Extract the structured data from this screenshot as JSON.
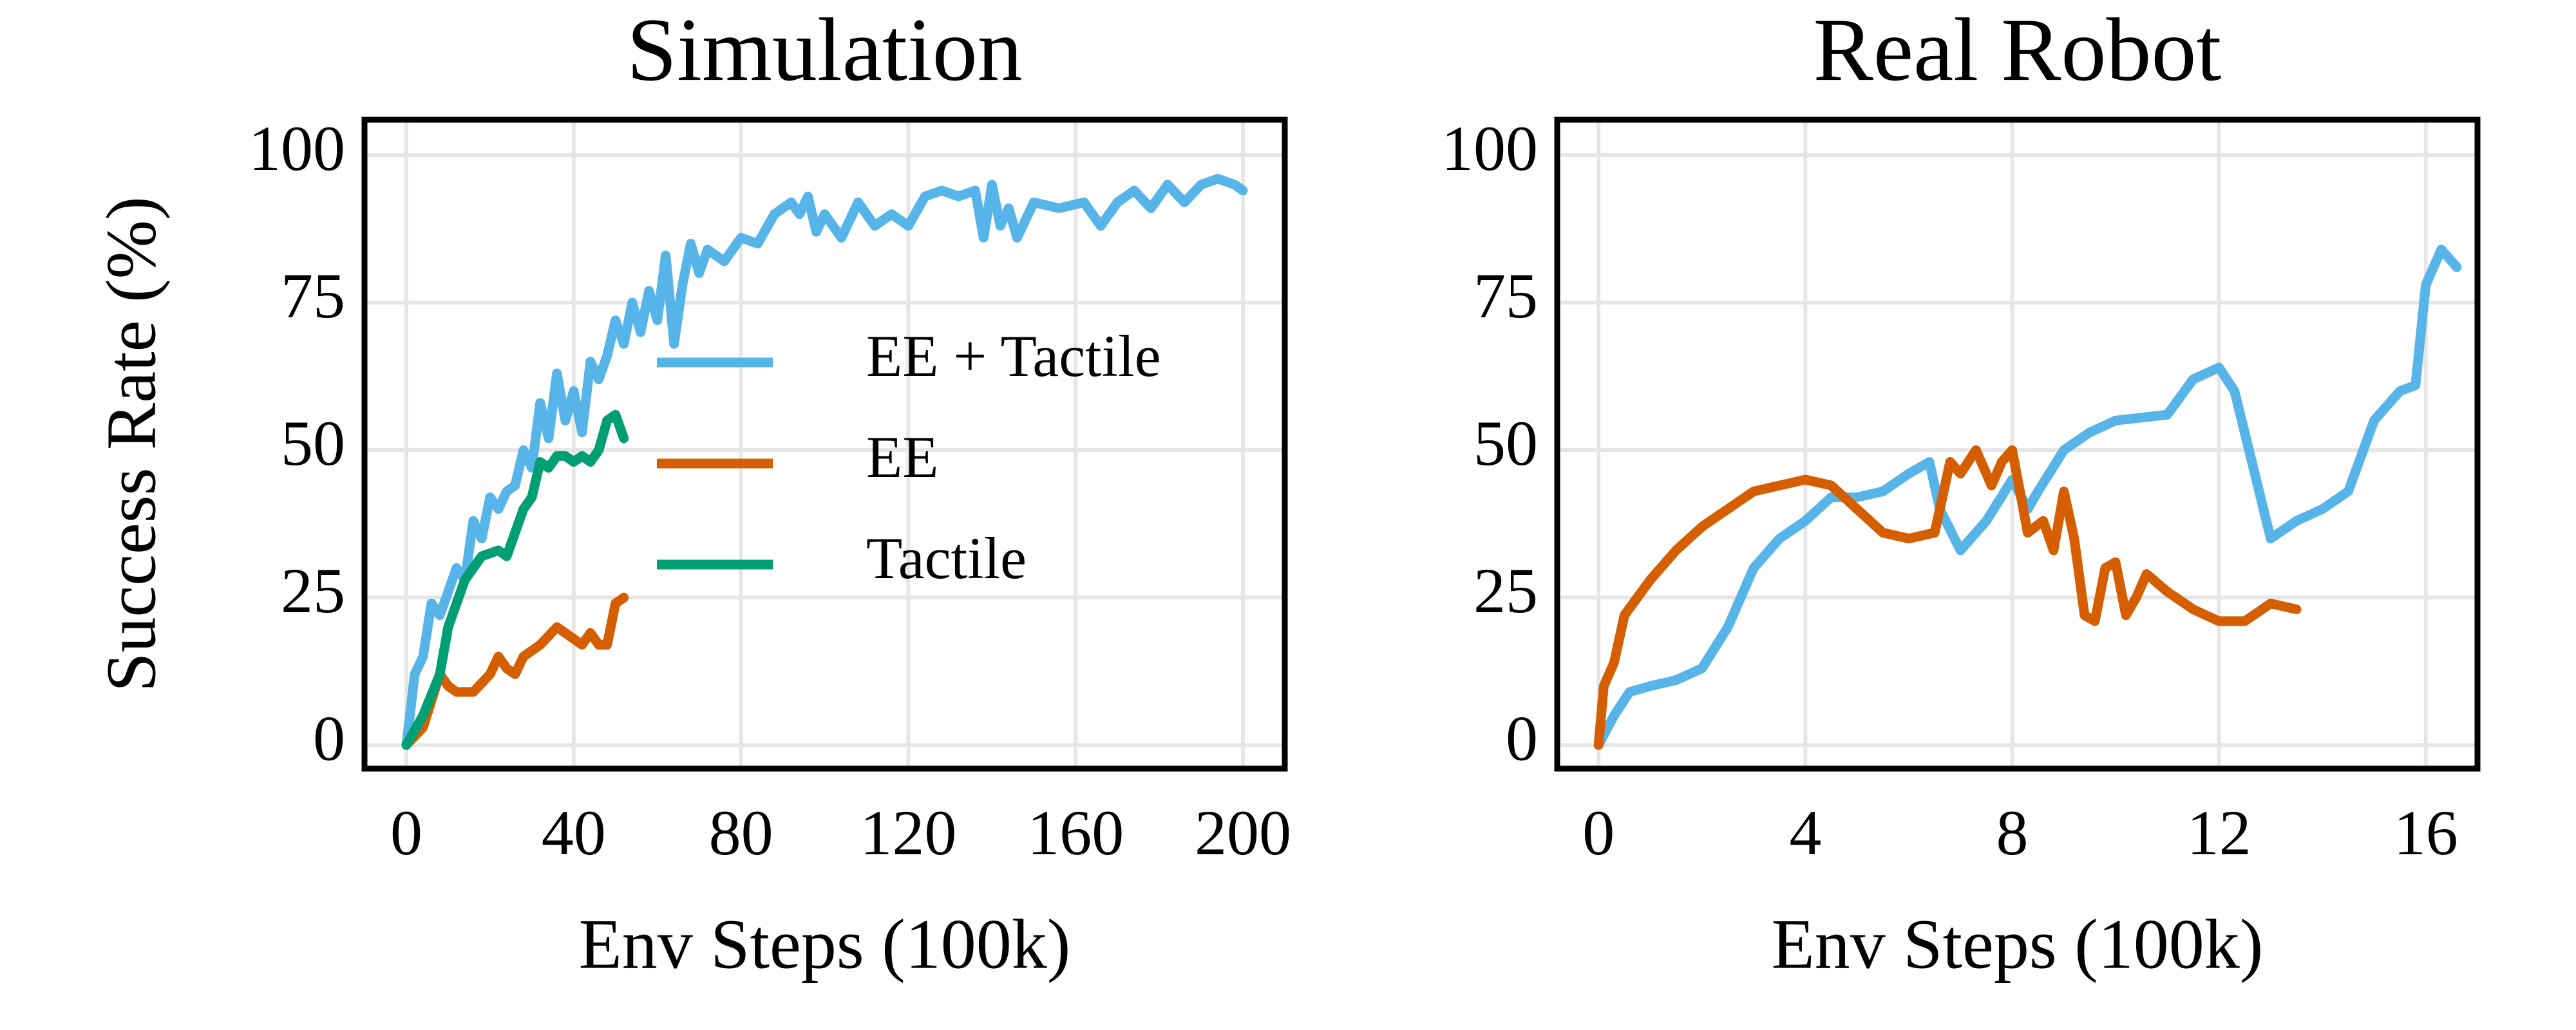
{
  "chart_data": [
    {
      "type": "line",
      "title": "Simulation",
      "xlabel": "Env Steps (100k)",
      "ylabel": "Success Rate (%)",
      "xlim": [
        -10,
        210
      ],
      "ylim": [
        -4,
        106
      ],
      "xticks": [
        0,
        40,
        80,
        120,
        160,
        200
      ],
      "yticks": [
        0,
        25,
        50,
        75,
        100
      ],
      "grid": true,
      "legend": "center right",
      "series": [
        {
          "name": "EE + Tactile",
          "color": "#56b4e9",
          "x": [
            0,
            2,
            4,
            6,
            8,
            10,
            12,
            14,
            16,
            18,
            20,
            22,
            24,
            26,
            28,
            30,
            32,
            34,
            36,
            38,
            40,
            42,
            44,
            46,
            48,
            50,
            52,
            54,
            56,
            58,
            60,
            62,
            64,
            66,
            68,
            70,
            72,
            76,
            80,
            84,
            88,
            92,
            94,
            96,
            98,
            100,
            104,
            108,
            112,
            116,
            120,
            124,
            128,
            132,
            136,
            138,
            140,
            142,
            144,
            146,
            150,
            156,
            162,
            166,
            170,
            174,
            178,
            182,
            186,
            190,
            194,
            198,
            200
          ],
          "values": [
            0,
            12,
            15,
            24,
            22,
            26,
            30,
            28,
            38,
            35,
            42,
            40,
            43,
            44,
            50,
            47,
            58,
            52,
            63,
            55,
            60,
            53,
            65,
            62,
            66,
            72,
            68,
            75,
            70,
            77,
            72,
            83,
            68,
            78,
            85,
            80,
            84,
            82,
            86,
            85,
            90,
            92,
            90,
            93,
            87,
            90,
            86,
            92,
            88,
            90,
            88,
            93,
            94,
            93,
            94,
            86,
            95,
            88,
            91,
            86,
            92,
            91,
            92,
            88,
            92,
            94,
            91,
            95,
            92,
            95,
            96,
            95,
            94
          ]
        },
        {
          "name": "EE",
          "color": "#d55e00",
          "x": [
            0,
            4,
            8,
            10,
            12,
            16,
            20,
            22,
            24,
            26,
            28,
            32,
            36,
            38,
            40,
            42,
            44,
            46,
            48,
            50,
            52
          ],
          "values": [
            0,
            3,
            12,
            10,
            9,
            9,
            12,
            15,
            13,
            12,
            15,
            17,
            20,
            19,
            18,
            17,
            19,
            17,
            17,
            24,
            25
          ]
        },
        {
          "name": "Tactile",
          "color": "#009e73",
          "x": [
            0,
            4,
            8,
            10,
            14,
            18,
            22,
            24,
            28,
            30,
            32,
            34,
            36,
            38,
            40,
            42,
            44,
            46,
            48,
            50,
            52
          ],
          "values": [
            0,
            5,
            12,
            20,
            28,
            32,
            33,
            32,
            40,
            42,
            48,
            47,
            49,
            49,
            48,
            49,
            48,
            50,
            55,
            56,
            52
          ]
        }
      ]
    },
    {
      "type": "line",
      "title": "Real Robot",
      "xlabel": "Env Steps (100k)",
      "xlim": [
        -0.8,
        17
      ],
      "ylim": [
        -4,
        106
      ],
      "xticks": [
        0,
        4,
        8,
        12,
        16
      ],
      "yticks": [
        0,
        25,
        50,
        75,
        100
      ],
      "grid": true,
      "series": [
        {
          "color": "#56b4e9",
          "x": [
            0,
            0.3,
            0.6,
            1,
            1.5,
            2,
            2.5,
            3,
            3.5,
            4,
            4.5,
            5,
            5.5,
            6,
            6.4,
            6.6,
            7,
            7.5,
            8,
            8.3,
            8.5,
            9,
            9.5,
            10,
            11,
            11.5,
            12,
            12.3,
            13,
            13.5,
            14,
            14.5,
            15,
            15.5,
            15.8,
            16,
            16.3,
            16.6
          ],
          "values": [
            0,
            5,
            9,
            10,
            11,
            13,
            20,
            30,
            35,
            38,
            42,
            42,
            43,
            46,
            48,
            40,
            33,
            38,
            45,
            40,
            43,
            50,
            53,
            55,
            56,
            62,
            64,
            60,
            35,
            38,
            40,
            43,
            55,
            60,
            61,
            78,
            84,
            81
          ]
        },
        {
          "color": "#d55e00",
          "x": [
            0,
            0.1,
            0.3,
            0.5,
            1,
            1.5,
            2,
            2.5,
            3,
            4,
            4.5,
            5,
            5.5,
            6,
            6.5,
            6.8,
            7,
            7.3,
            7.6,
            7.8,
            8,
            8.3,
            8.6,
            8.8,
            9,
            9.2,
            9.4,
            9.6,
            9.8,
            10,
            10.2,
            10.4,
            10.6,
            11,
            11.5,
            12,
            12.5,
            13,
            13.5
          ],
          "values": [
            0,
            10,
            14,
            22,
            28,
            33,
            37,
            40,
            43,
            45,
            44,
            40,
            36,
            35,
            36,
            48,
            46,
            50,
            44,
            48,
            50,
            36,
            38,
            33,
            43,
            35,
            22,
            21,
            30,
            31,
            22,
            25,
            29,
            26,
            23,
            21,
            21,
            24,
            23
          ]
        }
      ]
    }
  ]
}
